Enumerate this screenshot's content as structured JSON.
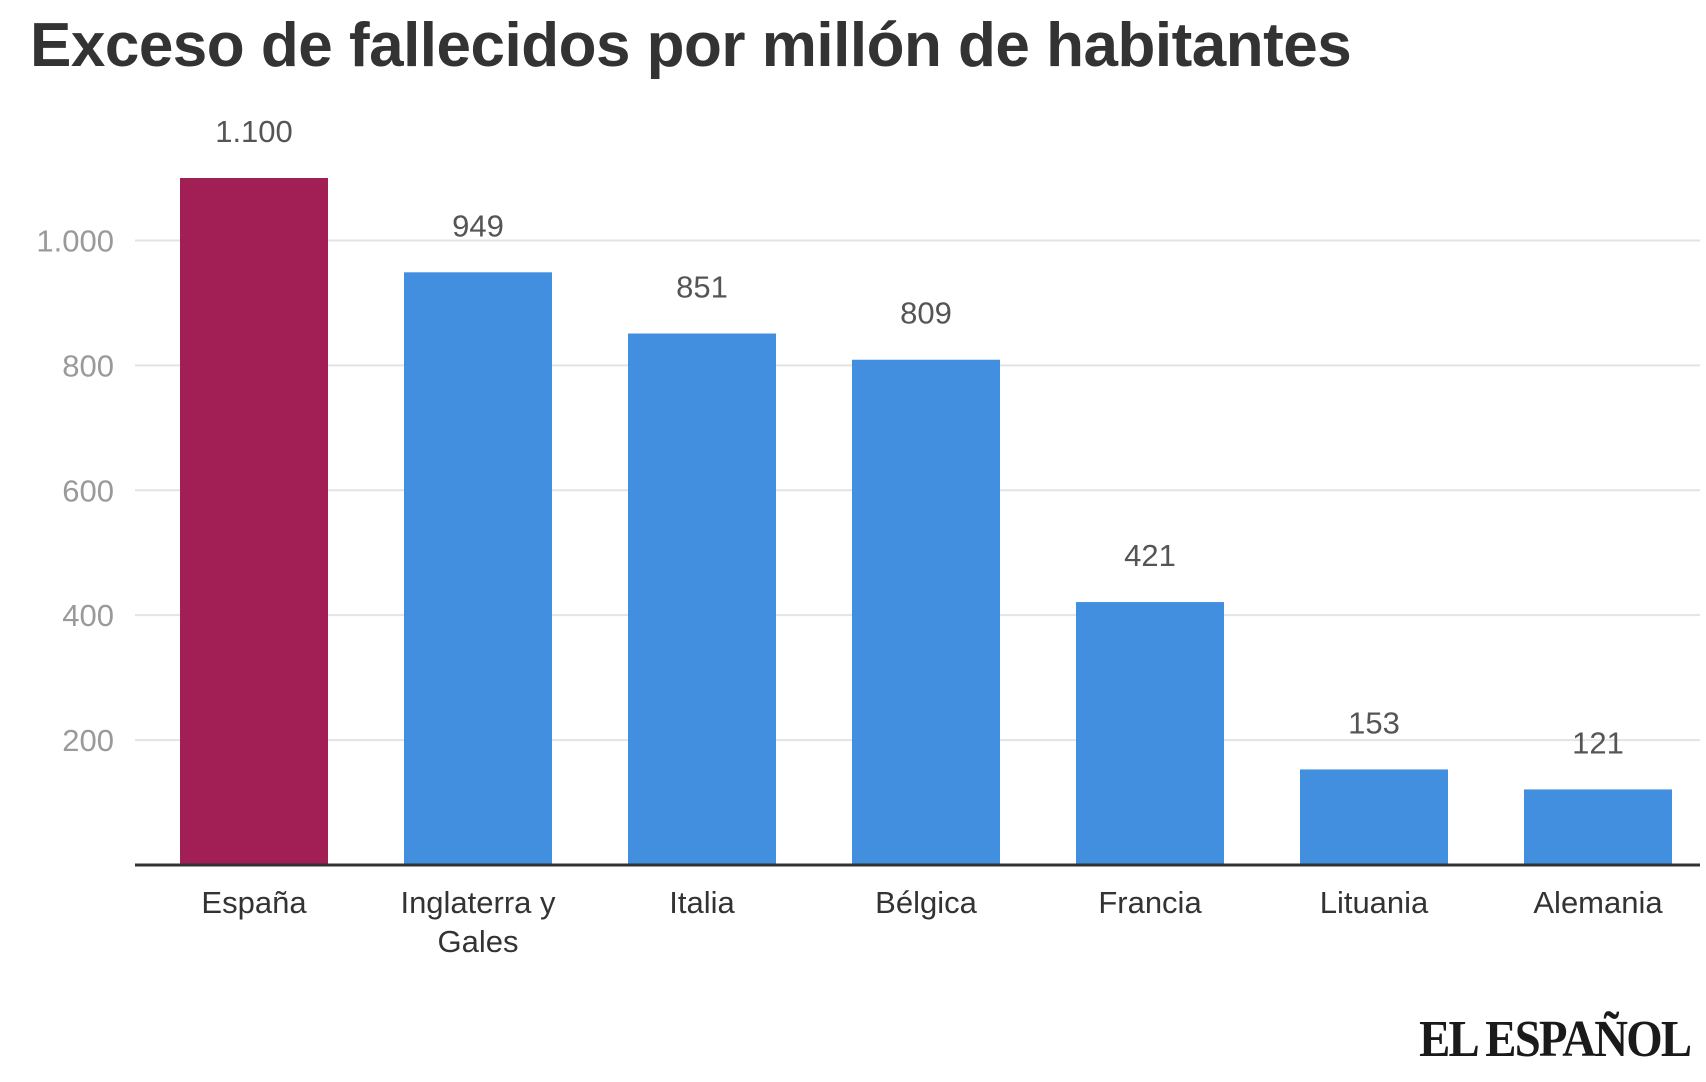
{
  "title": "Exceso de fallecidos por millón de habitantes",
  "brand": "EL ESPAÑOL",
  "colors": {
    "highlight": "#A21F55",
    "bar": "#418FDE",
    "grid": "#E3E3E3",
    "axis": "#333333"
  },
  "chart_data": {
    "type": "bar",
    "categories": [
      "España",
      "Inglaterra y Gales",
      "Italia",
      "Bélgica",
      "Francia",
      "Lituania",
      "Alemania"
    ],
    "category_lines": [
      [
        "España"
      ],
      [
        "Inglaterra y",
        "Gales"
      ],
      [
        "Italia"
      ],
      [
        "Bélgica"
      ],
      [
        "Francia"
      ],
      [
        "Lituania"
      ],
      [
        "Alemania"
      ]
    ],
    "values": [
      1100,
      949,
      851,
      809,
      421,
      153,
      121
    ],
    "value_labels": [
      "1.100",
      "949",
      "851",
      "809",
      "421",
      "153",
      "121"
    ],
    "highlighted": [
      "España"
    ],
    "yticks": [
      200,
      400,
      600,
      800,
      1000
    ],
    "ytick_labels": [
      "200",
      "400",
      "600",
      "800",
      "1.000"
    ],
    "ylim": [
      0,
      1100
    ],
    "grid": true,
    "legend": false
  }
}
